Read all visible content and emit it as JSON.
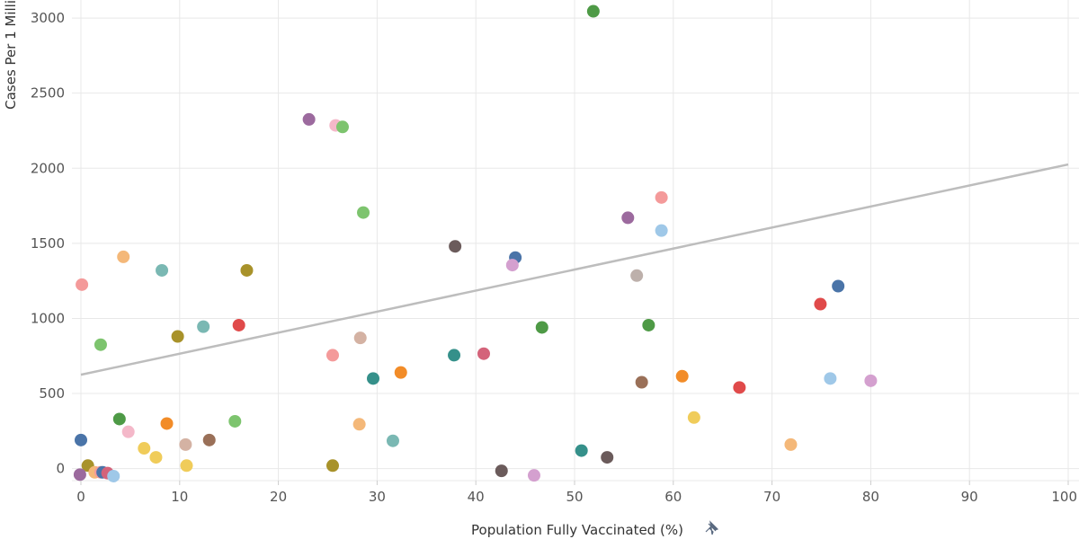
{
  "chart_data": {
    "type": "scatter",
    "title": "",
    "xlabel": "Population Fully Vaccinated (%)",
    "ylabel": "Cases Per 1 Milli",
    "xlim": [
      0,
      100
    ],
    "ylim": [
      -80,
      3120
    ],
    "x_ticks": [
      0,
      10,
      20,
      30,
      40,
      50,
      60,
      70,
      80,
      90,
      100
    ],
    "y_ticks": [
      0,
      500,
      1000,
      1500,
      2000,
      2500,
      3000
    ],
    "grid": true,
    "trend_line": {
      "x": [
        0,
        100
      ],
      "y": [
        625,
        2025
      ]
    },
    "points": [
      {
        "x": 51.9,
        "y": 3045,
        "color": "#4e9a46"
      },
      {
        "x": 23.1,
        "y": 2325,
        "color": "#9c6a9e"
      },
      {
        "x": 25.8,
        "y": 2285,
        "color": "#f4b8c9"
      },
      {
        "x": 26.5,
        "y": 2275,
        "color": "#7dc46e"
      },
      {
        "x": 58.8,
        "y": 1805,
        "color": "#f49a9a"
      },
      {
        "x": 28.6,
        "y": 1705,
        "color": "#7dc46e"
      },
      {
        "x": 55.4,
        "y": 1670,
        "color": "#9c6a9e"
      },
      {
        "x": 58.8,
        "y": 1585,
        "color": "#9fc8e8"
      },
      {
        "x": 37.9,
        "y": 1480,
        "color": "#6b5b5b"
      },
      {
        "x": 4.3,
        "y": 1410,
        "color": "#f4b879"
      },
      {
        "x": 44.0,
        "y": 1405,
        "color": "#4a74a8"
      },
      {
        "x": 43.7,
        "y": 1355,
        "color": "#d4a0cf"
      },
      {
        "x": 8.2,
        "y": 1320,
        "color": "#7ab8b3"
      },
      {
        "x": 16.8,
        "y": 1320,
        "color": "#a8922a"
      },
      {
        "x": 56.3,
        "y": 1285,
        "color": "#bdb0ab"
      },
      {
        "x": 0.1,
        "y": 1225,
        "color": "#f49a9a"
      },
      {
        "x": 76.7,
        "y": 1215,
        "color": "#4a74a8"
      },
      {
        "x": 74.9,
        "y": 1095,
        "color": "#e04a4a"
      },
      {
        "x": 16.0,
        "y": 955,
        "color": "#e04a4a"
      },
      {
        "x": 12.4,
        "y": 945,
        "color": "#7ab8b3"
      },
      {
        "x": 57.5,
        "y": 955,
        "color": "#4e9a46"
      },
      {
        "x": 46.7,
        "y": 940,
        "color": "#4e9a46"
      },
      {
        "x": 9.8,
        "y": 880,
        "color": "#a8922a"
      },
      {
        "x": 28.3,
        "y": 870,
        "color": "#d4b2a3"
      },
      {
        "x": 2.0,
        "y": 825,
        "color": "#7dc46e"
      },
      {
        "x": 40.8,
        "y": 765,
        "color": "#d4637a"
      },
      {
        "x": 25.5,
        "y": 755,
        "color": "#f49a9a"
      },
      {
        "x": 37.8,
        "y": 755,
        "color": "#35908a"
      },
      {
        "x": 32.4,
        "y": 640,
        "color": "#f28c28"
      },
      {
        "x": 29.6,
        "y": 600,
        "color": "#35908a"
      },
      {
        "x": 60.9,
        "y": 615,
        "color": "#f28c28"
      },
      {
        "x": 75.9,
        "y": 600,
        "color": "#9fc8e8"
      },
      {
        "x": 80.0,
        "y": 585,
        "color": "#d4a0cf"
      },
      {
        "x": 56.8,
        "y": 575,
        "color": "#9a7058"
      },
      {
        "x": 66.7,
        "y": 540,
        "color": "#e04a4a"
      },
      {
        "x": 62.1,
        "y": 340,
        "color": "#f0cc5a"
      },
      {
        "x": 3.9,
        "y": 330,
        "color": "#4e9a46"
      },
      {
        "x": 15.6,
        "y": 315,
        "color": "#7dc46e"
      },
      {
        "x": 8.7,
        "y": 300,
        "color": "#f28c28"
      },
      {
        "x": 28.2,
        "y": 295,
        "color": "#f4b879"
      },
      {
        "x": 4.8,
        "y": 245,
        "color": "#f4b8c9"
      },
      {
        "x": 13.0,
        "y": 190,
        "color": "#9a7058"
      },
      {
        "x": 0.0,
        "y": 190,
        "color": "#4a74a8"
      },
      {
        "x": 31.6,
        "y": 185,
        "color": "#7ab8b3"
      },
      {
        "x": 10.6,
        "y": 160,
        "color": "#d4b2a3"
      },
      {
        "x": 71.9,
        "y": 160,
        "color": "#f4b879"
      },
      {
        "x": 6.4,
        "y": 135,
        "color": "#f0cc5a"
      },
      {
        "x": 50.7,
        "y": 120,
        "color": "#35908a"
      },
      {
        "x": 7.6,
        "y": 75,
        "color": "#f0cc5a"
      },
      {
        "x": 53.3,
        "y": 75,
        "color": "#6b5b5b"
      },
      {
        "x": 10.7,
        "y": 20,
        "color": "#f0cc5a"
      },
      {
        "x": 25.5,
        "y": 20,
        "color": "#a8922a"
      },
      {
        "x": 0.7,
        "y": 20,
        "color": "#a8922a"
      },
      {
        "x": 42.6,
        "y": -15,
        "color": "#6b5b5b"
      },
      {
        "x": 45.9,
        "y": -45,
        "color": "#d4a0cf"
      },
      {
        "x": -0.1,
        "y": -40,
        "color": "#9c6a9e"
      },
      {
        "x": 1.4,
        "y": -25,
        "color": "#f4b879"
      },
      {
        "x": 2.0,
        "y": -25,
        "color": "#f49a9a"
      },
      {
        "x": 2.2,
        "y": -25,
        "color": "#4a74a8"
      },
      {
        "x": 2.7,
        "y": -30,
        "color": "#d4637a"
      },
      {
        "x": 3.3,
        "y": -50,
        "color": "#9fc8e8"
      }
    ]
  }
}
